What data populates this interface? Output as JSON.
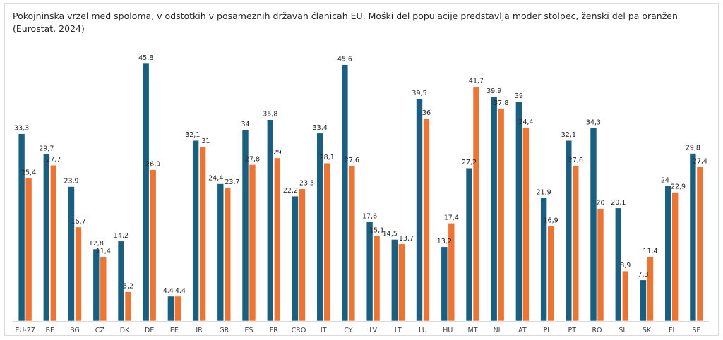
{
  "chart_data": {
    "type": "bar",
    "title_line1": "Pokojninska vrzel med spoloma, v odstotkih v posameznih državah članicah EU. Moški del populacije predstavlja moder stolpec,  ženski del pa oranžen",
    "title_line2": "(Eurostat, 2024)",
    "xlabel": "",
    "ylabel": "",
    "ylim": [
      0,
      46
    ],
    "grid": false,
    "legend": "none",
    "categories": [
      "EU-27",
      "BE",
      "BG",
      "CZ",
      "DK",
      "DE",
      "EE",
      "IR",
      "GR",
      "ES",
      "FR",
      "CRO",
      "IT",
      "CY",
      "LV",
      "LT",
      "LU",
      "HU",
      "MT",
      "NL",
      "AT",
      "PL",
      "PT",
      "RO",
      "SI",
      "SK",
      "FI",
      "SE"
    ],
    "series": [
      {
        "name": "Moški",
        "color": "#1a5f80",
        "values": [
          33.3,
          29.7,
          23.9,
          12.8,
          14.2,
          45.8,
          4.4,
          32.1,
          24.4,
          34,
          35.8,
          22.2,
          33.4,
          45.6,
          17.6,
          14.5,
          39.5,
          13.2,
          27.2,
          39.9,
          39,
          21.9,
          32.1,
          34.3,
          20.1,
          7.3,
          24,
          29.8
        ],
        "labels": [
          "33,3",
          "29,7",
          "23,9",
          "12,8",
          "14,2",
          "45,8",
          "4,4",
          "32,1",
          "24,4",
          "34",
          "35,8",
          "22,2",
          "33,4",
          "45,6",
          "17,6",
          "14,5",
          "39,5",
          "13,2",
          "27,2",
          "39,9",
          "39",
          "21,9",
          "32,1",
          "34,3",
          "20,1",
          "7,3",
          "24",
          "29,8"
        ]
      },
      {
        "name": "Ženske",
        "color": "#ed7533",
        "values": [
          25.4,
          27.7,
          16.7,
          11.4,
          5.2,
          26.9,
          4.4,
          31,
          23.7,
          27.8,
          29,
          23.5,
          28.1,
          27.6,
          15.1,
          13.7,
          36,
          17.4,
          41.7,
          37.8,
          34.4,
          16.9,
          27.6,
          20,
          8.9,
          11.4,
          22.9,
          27.4
        ],
        "labels": [
          "25,4",
          "27,7",
          "16,7",
          "11,4",
          "5,2",
          "26,9",
          "4,4",
          "31",
          "23,7",
          "27,8",
          "29",
          "23,5",
          "28,1",
          "27,6",
          "15,1",
          "13,7",
          "36",
          "17,4",
          "41,7",
          "37,8",
          "34,4",
          "16,9",
          "27,6",
          "20",
          "8,9",
          "11,4",
          "22,9",
          "27,4"
        ]
      }
    ]
  }
}
